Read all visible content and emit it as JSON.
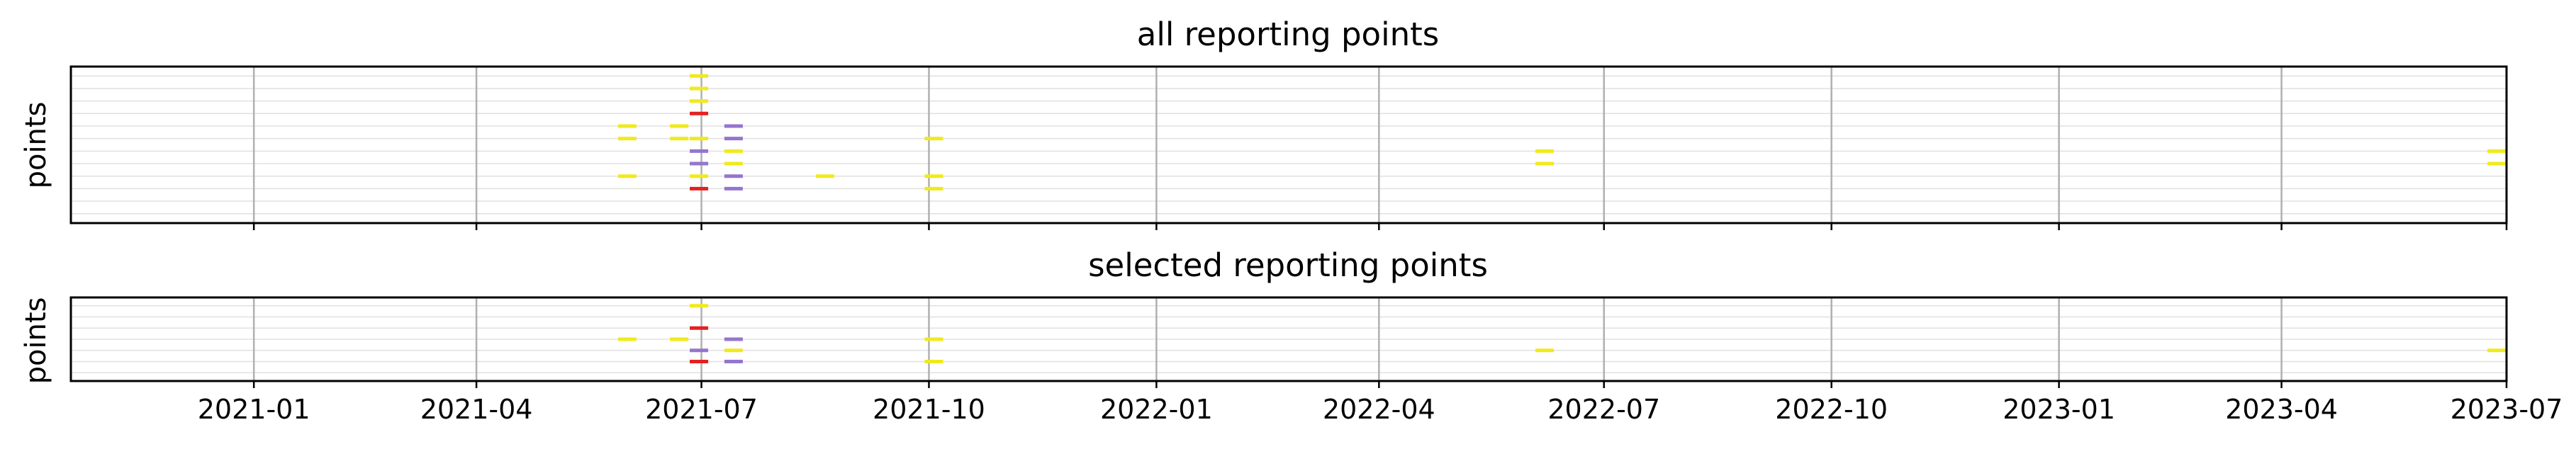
{
  "chart_data": [
    {
      "type": "event-plot",
      "title": "all reporting points",
      "ylabel": "points",
      "rows": 12,
      "grid": true,
      "x_ticks": [
        "2021-01",
        "2021-04",
        "2021-07",
        "2021-10",
        "2022-01",
        "2022-04",
        "2022-07",
        "2022-10",
        "2023-01",
        "2023-04",
        "2023-07"
      ],
      "xlim": [
        "2020-10-19",
        "2023-07-01"
      ],
      "colors": {
        "yellow": "#f0ea1c",
        "purple": "#9575cd",
        "red": "#e5201e",
        "grid": "#b0b0b0",
        "rowline": "#e0e0e0"
      },
      "events": [
        {
          "date": "2021-06-30",
          "row": 0,
          "color": "yellow"
        },
        {
          "date": "2021-06-30",
          "row": 1,
          "color": "yellow"
        },
        {
          "date": "2021-06-30",
          "row": 2,
          "color": "yellow"
        },
        {
          "date": "2021-06-30",
          "row": 3,
          "color": "red"
        },
        {
          "date": "2021-06-01",
          "row": 4,
          "color": "yellow"
        },
        {
          "date": "2021-06-22",
          "row": 4,
          "color": "yellow"
        },
        {
          "date": "2021-07-14",
          "row": 4,
          "color": "purple"
        },
        {
          "date": "2021-06-01",
          "row": 5,
          "color": "yellow"
        },
        {
          "date": "2021-06-22",
          "row": 5,
          "color": "yellow"
        },
        {
          "date": "2021-06-30",
          "row": 5,
          "color": "yellow"
        },
        {
          "date": "2021-07-14",
          "row": 5,
          "color": "purple"
        },
        {
          "date": "2021-10-03",
          "row": 5,
          "color": "yellow"
        },
        {
          "date": "2021-06-30",
          "row": 6,
          "color": "purple"
        },
        {
          "date": "2021-07-14",
          "row": 6,
          "color": "yellow"
        },
        {
          "date": "2022-06-07",
          "row": 6,
          "color": "yellow"
        },
        {
          "date": "2023-06-27",
          "row": 6,
          "color": "yellow"
        },
        {
          "date": "2021-06-30",
          "row": 7,
          "color": "purple"
        },
        {
          "date": "2021-07-14",
          "row": 7,
          "color": "yellow"
        },
        {
          "date": "2022-06-07",
          "row": 7,
          "color": "yellow"
        },
        {
          "date": "2023-06-27",
          "row": 7,
          "color": "yellow"
        },
        {
          "date": "2021-06-01",
          "row": 8,
          "color": "yellow"
        },
        {
          "date": "2021-06-30",
          "row": 8,
          "color": "yellow"
        },
        {
          "date": "2021-07-14",
          "row": 8,
          "color": "purple"
        },
        {
          "date": "2021-08-20",
          "row": 8,
          "color": "yellow"
        },
        {
          "date": "2021-10-03",
          "row": 8,
          "color": "yellow"
        },
        {
          "date": "2021-06-30",
          "row": 9,
          "color": "red"
        },
        {
          "date": "2021-07-14",
          "row": 9,
          "color": "purple"
        },
        {
          "date": "2021-10-03",
          "row": 9,
          "color": "yellow"
        }
      ]
    },
    {
      "type": "event-plot",
      "title": "selected reporting points",
      "ylabel": "points",
      "rows": 7,
      "grid": true,
      "x_ticks": [
        "2021-01",
        "2021-04",
        "2021-07",
        "2021-10",
        "2022-01",
        "2022-04",
        "2022-07",
        "2022-10",
        "2023-01",
        "2023-04",
        "2023-07"
      ],
      "xlim": [
        "2020-10-19",
        "2023-07-01"
      ],
      "colors": {
        "yellow": "#f0ea1c",
        "purple": "#9575cd",
        "red": "#e5201e",
        "grid": "#b0b0b0",
        "rowline": "#e0e0e0"
      },
      "events": [
        {
          "date": "2021-06-30",
          "row": 0,
          "color": "yellow"
        },
        {
          "date": "2021-06-30",
          "row": 2,
          "color": "red"
        },
        {
          "date": "2021-06-01",
          "row": 3,
          "color": "yellow"
        },
        {
          "date": "2021-06-22",
          "row": 3,
          "color": "yellow"
        },
        {
          "date": "2021-07-14",
          "row": 3,
          "color": "purple"
        },
        {
          "date": "2021-10-03",
          "row": 3,
          "color": "yellow"
        },
        {
          "date": "2021-06-30",
          "row": 4,
          "color": "purple"
        },
        {
          "date": "2021-07-14",
          "row": 4,
          "color": "yellow"
        },
        {
          "date": "2022-06-07",
          "row": 4,
          "color": "yellow"
        },
        {
          "date": "2023-06-27",
          "row": 4,
          "color": "yellow"
        },
        {
          "date": "2021-06-30",
          "row": 5,
          "color": "red"
        },
        {
          "date": "2021-07-14",
          "row": 5,
          "color": "purple"
        },
        {
          "date": "2021-10-03",
          "row": 5,
          "color": "yellow"
        }
      ]
    }
  ]
}
